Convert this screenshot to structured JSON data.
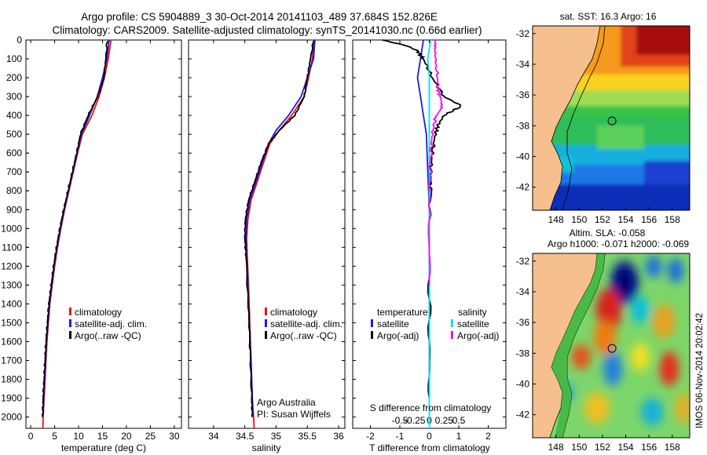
{
  "header": {
    "line1": "Argo profile: CS 5904889_3 30-Oct-2014 20141103_489 37.684S 152.826E",
    "line2": "Climatology: CARS2009. Satellite-adjusted climatology: synTS_20141030.nc (0.66d earlier)"
  },
  "colors": {
    "clim": "#ee1111",
    "sat": "#1a1aee",
    "argo": "#000000",
    "sat_s": "#00e5ee",
    "argo_s": "#ee11ee",
    "land": "#f5c08d"
  },
  "chart_data": [
    {
      "id": "temperature",
      "type": "line",
      "xlabel": "temperature (deg C)",
      "xlim": [
        -1,
        31.5
      ],
      "xticks": [
        0,
        5,
        10,
        15,
        20,
        25,
        30
      ],
      "ylim": [
        2060,
        0
      ],
      "yticks": [
        0,
        100,
        200,
        300,
        400,
        500,
        600,
        700,
        800,
        900,
        1000,
        1100,
        1200,
        1300,
        1400,
        1500,
        1600,
        1700,
        1800,
        1900,
        2000
      ],
      "legend": [
        "climatology",
        "satellite-adj. clim.",
        "Argo(..raw -QC)"
      ],
      "series": [
        {
          "name": "climatology",
          "color": "#ee1111",
          "points": [
            [
              16.8,
              0
            ],
            [
              16.2,
              100
            ],
            [
              15.4,
              200
            ],
            [
              14.3,
              300
            ],
            [
              12.8,
              400
            ],
            [
              10.8,
              500
            ],
            [
              9.8,
              600
            ],
            [
              8.9,
              700
            ],
            [
              8.0,
              800
            ],
            [
              7.1,
              900
            ],
            [
              6.3,
              1000
            ],
            [
              5.6,
              1100
            ],
            [
              5.0,
              1200
            ],
            [
              4.5,
              1300
            ],
            [
              4.0,
              1400
            ],
            [
              3.7,
              1500
            ],
            [
              3.4,
              1600
            ],
            [
              3.2,
              1700
            ],
            [
              3.0,
              1800
            ],
            [
              2.8,
              1900
            ],
            [
              2.6,
              2000
            ],
            [
              2.55,
              2060
            ]
          ]
        },
        {
          "name": "satellite-adj. clim.",
          "color": "#1a1aee",
          "points": [
            [
              16.4,
              0
            ],
            [
              15.9,
              100
            ],
            [
              15.0,
              200
            ],
            [
              13.9,
              300
            ],
            [
              12.3,
              400
            ],
            [
              10.6,
              500
            ],
            [
              9.7,
              600
            ],
            [
              8.8,
              700
            ],
            [
              7.9,
              800
            ],
            [
              7.0,
              900
            ],
            [
              6.2,
              1000
            ],
            [
              5.5,
              1100
            ],
            [
              4.9,
              1200
            ],
            [
              4.4,
              1300
            ],
            [
              3.9,
              1400
            ],
            [
              3.6,
              1500
            ],
            [
              3.3,
              1600
            ],
            [
              3.1,
              1700
            ],
            [
              2.9,
              1800
            ],
            [
              2.7,
              1900
            ],
            [
              2.55,
              2000
            ]
          ]
        },
        {
          "name": "Argo(..raw -QC)",
          "color": "#000000",
          "points": [
            [
              16.0,
              5
            ],
            [
              15.7,
              100
            ],
            [
              15.3,
              200
            ],
            [
              14.0,
              300
            ],
            [
              12.0,
              400
            ],
            [
              10.4,
              500
            ],
            [
              9.6,
              600
            ],
            [
              8.7,
              700
            ],
            [
              7.8,
              800
            ],
            [
              6.9,
              900
            ],
            [
              6.1,
              1000
            ],
            [
              5.4,
              1100
            ],
            [
              4.8,
              1200
            ],
            [
              4.3,
              1300
            ],
            [
              3.8,
              1400
            ],
            [
              3.5,
              1500
            ],
            [
              3.2,
              1600
            ],
            [
              3.0,
              1700
            ],
            [
              2.8,
              1800
            ],
            [
              2.6,
              1900
            ],
            [
              2.5,
              2000
            ]
          ]
        }
      ]
    },
    {
      "id": "salinity",
      "type": "line",
      "xlabel": "salinity",
      "xlim": [
        33.6,
        36.1
      ],
      "xticks": [
        34,
        34.5,
        35,
        35.5,
        36
      ],
      "xticklabels": [
        "34",
        "34.5",
        "35",
        "35.5",
        "36"
      ],
      "ylim": [
        2060,
        0
      ],
      "legend": [
        "climatology",
        "satellite-adj. clim.",
        "Argo(..raw -QC)"
      ],
      "annotation": [
        "Argo Australia",
        "PI: Susan Wijffels"
      ],
      "series": [
        {
          "name": "climatology",
          "color": "#ee1111",
          "points": [
            [
              35.6,
              0
            ],
            [
              35.58,
              100
            ],
            [
              35.52,
              200
            ],
            [
              35.45,
              300
            ],
            [
              35.25,
              400
            ],
            [
              35.05,
              480
            ],
            [
              34.9,
              550
            ],
            [
              34.8,
              650
            ],
            [
              34.7,
              750
            ],
            [
              34.6,
              850
            ],
            [
              34.55,
              950
            ],
            [
              34.53,
              1050
            ],
            [
              34.54,
              1150
            ],
            [
              34.56,
              1300
            ],
            [
              34.58,
              1500
            ],
            [
              34.6,
              1700
            ],
            [
              34.62,
              1900
            ],
            [
              34.64,
              2000
            ],
            [
              34.65,
              2060
            ]
          ]
        },
        {
          "name": "satellite-adj. clim.",
          "color": "#1a1aee",
          "points": [
            [
              35.62,
              0
            ],
            [
              35.6,
              100
            ],
            [
              35.5,
              200
            ],
            [
              35.4,
              300
            ],
            [
              35.2,
              400
            ],
            [
              35.0,
              480
            ],
            [
              34.88,
              550
            ],
            [
              34.78,
              650
            ],
            [
              34.68,
              750
            ],
            [
              34.58,
              850
            ],
            [
              34.53,
              950
            ],
            [
              34.52,
              1050
            ],
            [
              34.53,
              1150
            ],
            [
              34.55,
              1300
            ],
            [
              34.57,
              1500
            ],
            [
              34.6,
              1700
            ],
            [
              34.62,
              1900
            ],
            [
              34.63,
              2000
            ]
          ]
        },
        {
          "name": "Argo(..raw -QC)",
          "color": "#000000",
          "points": [
            [
              35.6,
              5
            ],
            [
              35.55,
              100
            ],
            [
              35.5,
              200
            ],
            [
              35.45,
              300
            ],
            [
              35.3,
              400
            ],
            [
              35.05,
              480
            ],
            [
              34.88,
              550
            ],
            [
              34.76,
              650
            ],
            [
              34.66,
              750
            ],
            [
              34.56,
              850
            ],
            [
              34.51,
              950
            ],
            [
              34.5,
              1050
            ],
            [
              34.52,
              1150
            ],
            [
              34.54,
              1300
            ],
            [
              34.57,
              1500
            ],
            [
              34.59,
              1700
            ],
            [
              34.61,
              1900
            ],
            [
              34.62,
              2000
            ]
          ]
        }
      ]
    },
    {
      "id": "difference",
      "type": "line",
      "xlabel": "T difference from climatology",
      "xlabel_top": "S difference from climatology",
      "xlim": [
        -2.6,
        2.6
      ],
      "xticks": [
        -2,
        -1,
        0,
        1,
        2
      ],
      "sticks": [
        -0.5,
        -0.25,
        0,
        0.25,
        0.5
      ],
      "sticklabels": [
        "-0.5",
        "-0.25",
        "0",
        "0.25",
        "0.5"
      ],
      "ylim": [
        2060,
        0
      ],
      "legend_temp": {
        "title": "temperature",
        "items": [
          "satellite",
          "Argo(-adj)"
        ]
      },
      "legend_sal": {
        "title": "salinity",
        "items": [
          "satellite",
          "Argo(-adj)"
        ]
      },
      "series": [
        {
          "name": "T satellite",
          "color": "#1a1aee",
          "points": [
            [
              -0.2,
              0
            ],
            [
              -0.3,
              100
            ],
            [
              -0.4,
              200
            ],
            [
              -0.3,
              300
            ],
            [
              -0.2,
              400
            ],
            [
              -0.1,
              500
            ],
            [
              -0.05,
              700
            ],
            [
              0,
              900
            ],
            [
              0,
              1200
            ],
            [
              0,
              1500
            ],
            [
              0,
              1900
            ]
          ]
        },
        {
          "name": "T Argo(-adj)",
          "color": "#000000",
          "points": [
            [
              -1.6,
              0
            ],
            [
              -0.8,
              30
            ],
            [
              -0.4,
              60
            ],
            [
              -0.2,
              100
            ],
            [
              0.1,
              200
            ],
            [
              0.5,
              300
            ],
            [
              1.1,
              350
            ],
            [
              0.5,
              400
            ],
            [
              0.3,
              450
            ],
            [
              0.2,
              500
            ],
            [
              0.1,
              600
            ],
            [
              0.05,
              700
            ],
            [
              0.05,
              800
            ],
            [
              0,
              1000
            ],
            [
              0,
              1300
            ],
            [
              0,
              1600
            ],
            [
              0,
              1900
            ]
          ]
        },
        {
          "name": "S satellite",
          "color": "#00e5ee",
          "points": [
            [
              0.05,
              0
            ],
            [
              -0.05,
              100
            ],
            [
              0,
              200
            ],
            [
              0,
              400
            ],
            [
              0,
              800
            ],
            [
              0,
              1200
            ],
            [
              0,
              1600
            ],
            [
              0,
              2060
            ]
          ]
        },
        {
          "name": "S Argo(-adj)",
          "color": "#ee11ee",
          "points": [
            [
              0.2,
              0
            ],
            [
              0.15,
              60
            ],
            [
              0.25,
              150
            ],
            [
              0.3,
              250
            ],
            [
              0.35,
              300
            ],
            [
              0.4,
              360
            ],
            [
              0.2,
              420
            ],
            [
              0.1,
              500
            ],
            [
              0.05,
              600
            ],
            [
              0.02,
              800
            ],
            [
              0,
              1000
            ],
            [
              0,
              1300
            ]
          ]
        }
      ]
    },
    {
      "id": "sst_map",
      "type": "heatmap",
      "title": "sat. SST: 16.3 Argo: 16",
      "lon_range": [
        146,
        159.5
      ],
      "lat_range": [
        -43.5,
        -31.5
      ],
      "lon_ticks": [
        148,
        150,
        152,
        154,
        156,
        158
      ],
      "lat_ticks": [
        -32,
        -34,
        -36,
        -38,
        -40,
        -42
      ],
      "argo_position": [
        152.826,
        -37.684
      ]
    },
    {
      "id": "sla_map",
      "type": "heatmap",
      "title": "Altim. SLA: -0.058",
      "subtitle": "Argo h1000: -0.071 h2000: -0.069",
      "lon_range": [
        146,
        159.5
      ],
      "lat_range": [
        -43.5,
        -31.5
      ],
      "lon_ticks": [
        148,
        150,
        152,
        154,
        156,
        158
      ],
      "lat_ticks": [
        -32,
        -34,
        -36,
        -38,
        -40,
        -42
      ],
      "argo_position": [
        152.826,
        -37.684
      ]
    }
  ],
  "footer": {
    "stamp": "IMOS 06-Nov-2014 20:02:42"
  }
}
